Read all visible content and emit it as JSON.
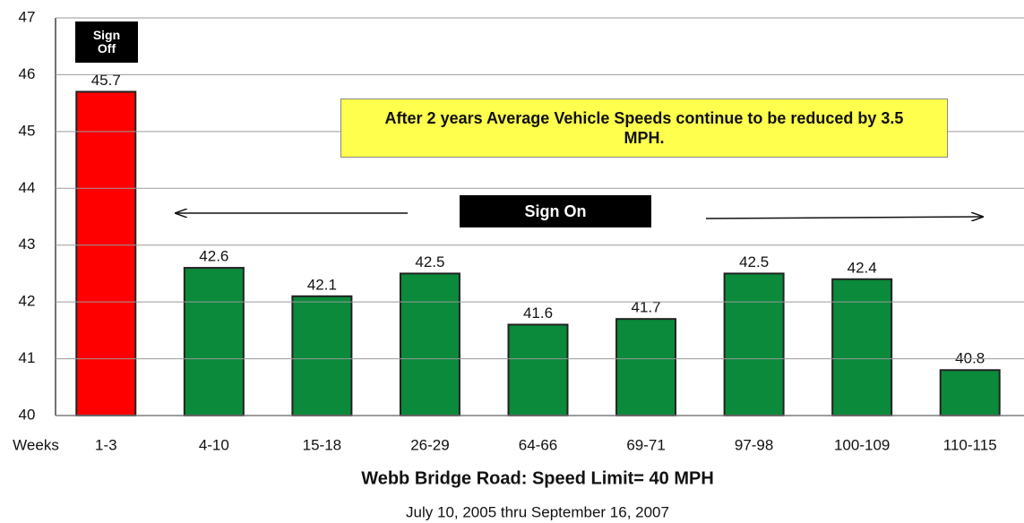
{
  "chart_data": {
    "type": "bar",
    "title": "Webb Bridge Road:  Speed Limit= 40 MPH",
    "subtitle": "July 10, 2005 thru September 16, 2007",
    "xlabel": "Weeks",
    "categories": [
      "1-3",
      "4-10",
      "15-18",
      "26-29",
      "64-66",
      "69-71",
      "97-98",
      "100-109",
      "110-115"
    ],
    "values": [
      45.7,
      42.6,
      42.1,
      42.5,
      41.6,
      41.7,
      42.5,
      42.4,
      40.8
    ],
    "colors": [
      "#ff0000",
      "#0a8a3a",
      "#0a8a3a",
      "#0a8a3a",
      "#0a8a3a",
      "#0a8a3a",
      "#0a8a3a",
      "#0a8a3a",
      "#0a8a3a"
    ],
    "ylim": [
      40,
      47
    ],
    "yticks": [
      40,
      41,
      42,
      43,
      44,
      45,
      46,
      47
    ],
    "grid": true,
    "annotations": [
      "Sign Off",
      "After 2 years Average Vehicle Speeds continue to be reduced by 3.5 MPH.",
      "Sign On"
    ]
  }
}
